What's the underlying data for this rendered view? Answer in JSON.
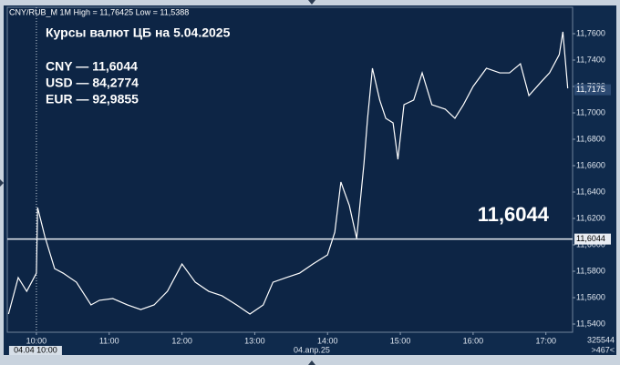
{
  "chart_data": {
    "type": "line",
    "header": "CNY/RUB_M 1M High = 11,76425 Low = 11,5388",
    "title": "Курсы валют ЦБ на 5.04.2025",
    "rates": [
      "CNY — 11,6044",
      "USD — 84,2774",
      "EUR — 92,9855"
    ],
    "big_label": "11,6044",
    "date_label": "04.апр.25",
    "cursor_label": "04.04 10:00",
    "footer_right": [
      "325544",
      ">467<"
    ],
    "reference_line": {
      "value": 11.6044,
      "label": "11,6044"
    },
    "last_price": {
      "value": 11.7175,
      "label": "11,7175"
    },
    "line_color": "#ffffff",
    "x": [
      "09:37",
      "09:45",
      "09:52",
      "10:00",
      "10:01",
      "10:07",
      "10:15",
      "10:22",
      "10:33",
      "10:45",
      "10:52",
      "11:03",
      "11:15",
      "11:26",
      "11:37",
      "11:48",
      "12:00",
      "12:11",
      "12:22",
      "12:33",
      "12:45",
      "12:56",
      "13:07",
      "13:15",
      "13:26",
      "13:37",
      "13:48",
      "14:00",
      "14:06",
      "14:11",
      "14:18",
      "14:24",
      "14:30",
      "14:33",
      "14:37",
      "14:43",
      "14:48",
      "14:54",
      "14:58",
      "15:03",
      "15:11",
      "15:18",
      "15:26",
      "15:37",
      "15:45",
      "15:52",
      "16:00",
      "16:11",
      "16:22",
      "16:30",
      "16:39",
      "16:46",
      "16:56",
      "17:03",
      "17:11",
      "17:14",
      "17:18"
    ],
    "values": [
      11.5476,
      11.5752,
      11.5648,
      11.5786,
      11.6283,
      11.6062,
      11.582,
      11.5786,
      11.5717,
      11.5545,
      11.558,
      11.5593,
      11.5545,
      11.551,
      11.5545,
      11.5648,
      11.5855,
      11.5717,
      11.5648,
      11.5614,
      11.5545,
      11.5476,
      11.5545,
      11.5717,
      11.5752,
      11.5786,
      11.5855,
      11.5924,
      11.6097,
      11.6476,
      11.6297,
      11.6048,
      11.6614,
      11.6959,
      11.7338,
      11.7097,
      11.6959,
      11.6924,
      11.6648,
      11.7062,
      11.7097,
      11.7303,
      11.7062,
      11.7028,
      11.6959,
      11.7062,
      11.72,
      11.7338,
      11.7303,
      11.7303,
      11.7372,
      11.7131,
      11.7234,
      11.7303,
      11.7441,
      11.7614,
      11.7186
    ],
    "xlim": [
      "09:36",
      "17:22"
    ],
    "xticks": [
      "10:00",
      "11:00",
      "12:00",
      "13:00",
      "14:00",
      "15:00",
      "16:00",
      "17:00"
    ],
    "ylim": [
      11.5338,
      11.78
    ],
    "yticks": [
      {
        "value": 11.54,
        "label": "11,5400"
      },
      {
        "value": 11.56,
        "label": "11,5600"
      },
      {
        "value": 11.58,
        "label": "11,5800"
      },
      {
        "value": 11.6,
        "label": "11,6000"
      },
      {
        "value": 11.62,
        "label": "11,6200"
      },
      {
        "value": 11.64,
        "label": "11,6400"
      },
      {
        "value": 11.66,
        "label": "11,6600"
      },
      {
        "value": 11.68,
        "label": "11,6800"
      },
      {
        "value": 11.7,
        "label": "11,7000"
      },
      {
        "value": 11.72,
        "label": "11,7200"
      },
      {
        "value": 11.74,
        "label": "11,7400"
      },
      {
        "value": 11.76,
        "label": "11,7600"
      }
    ]
  }
}
